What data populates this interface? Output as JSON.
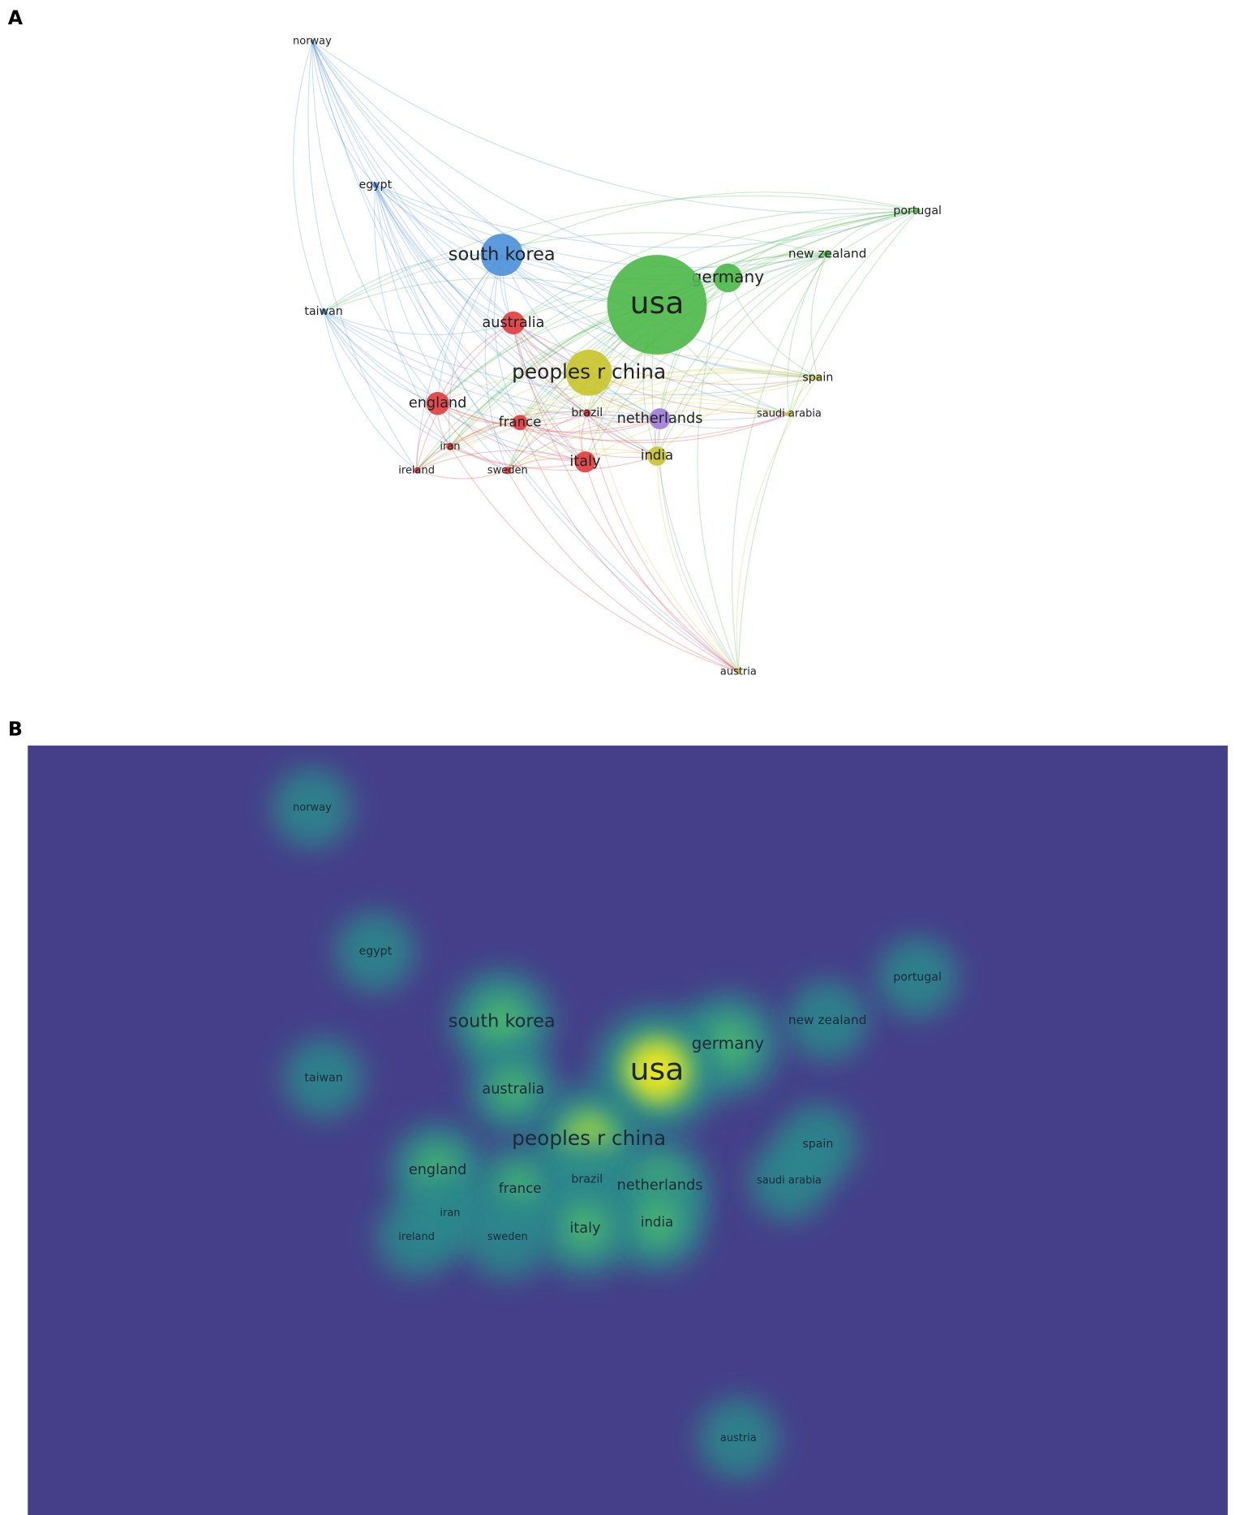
{
  "panels": [
    {
      "label": "A"
    },
    {
      "label": "B"
    }
  ],
  "nodes": [
    {
      "label": "norway"
    },
    {
      "label": "egypt"
    },
    {
      "label": "portugal"
    },
    {
      "label": "south korea"
    },
    {
      "label": "new zealand"
    },
    {
      "label": "germany"
    },
    {
      "label": "usa"
    },
    {
      "label": "taiwan"
    },
    {
      "label": "australia"
    },
    {
      "label": "peoples r china"
    },
    {
      "label": "spain"
    },
    {
      "label": "england"
    },
    {
      "label": "france"
    },
    {
      "label": "brazil"
    },
    {
      "label": "netherlands"
    },
    {
      "label": "saudi arabia"
    },
    {
      "label": "iran"
    },
    {
      "label": "india"
    },
    {
      "label": "italy"
    },
    {
      "label": "ireland"
    },
    {
      "label": "sweden"
    },
    {
      "label": "austria"
    }
  ]
}
